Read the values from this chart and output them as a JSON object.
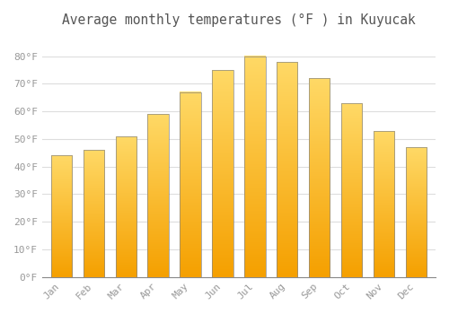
{
  "title": "Average monthly temperatures (°F ) in Kuyucak",
  "months": [
    "Jan",
    "Feb",
    "Mar",
    "Apr",
    "May",
    "Jun",
    "Jul",
    "Aug",
    "Sep",
    "Oct",
    "Nov",
    "Dec"
  ],
  "values": [
    44,
    46,
    51,
    59,
    67,
    75,
    80,
    78,
    72,
    63,
    53,
    47
  ],
  "bar_color_top": "#F5A000",
  "bar_color_bottom": "#FFD966",
  "background_color": "#ffffff",
  "grid_color": "#dddddd",
  "ylim": [
    0,
    88
  ],
  "yticks": [
    0,
    10,
    20,
    30,
    40,
    50,
    60,
    70,
    80
  ],
  "ytick_labels": [
    "0°F",
    "10°F",
    "20°F",
    "30°F",
    "40°F",
    "50°F",
    "60°F",
    "70°F",
    "80°F"
  ],
  "title_fontsize": 10.5,
  "tick_fontsize": 8,
  "tick_color": "#999999",
  "font_family": "monospace",
  "bar_edge_color": "#888888",
  "bar_width": 0.65
}
